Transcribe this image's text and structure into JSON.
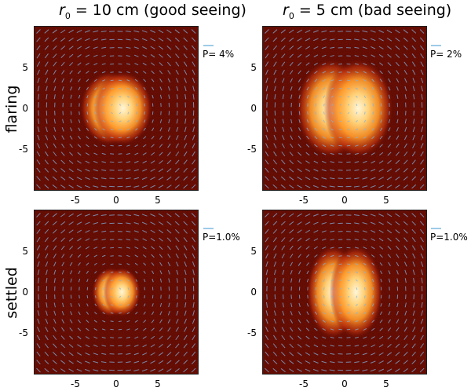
{
  "titles": {
    "left": {
      "prefix": "r",
      "sub": "0",
      "rest": " = 10 cm (good seeing)"
    },
    "right": {
      "prefix": "r",
      "sub": "0",
      "rest": " = 5 cm (bad seeing)"
    }
  },
  "rows": {
    "top": "flaring",
    "bottom": "settled"
  },
  "y_ticks": [
    "5",
    "0",
    "-5"
  ],
  "x_ticks": [
    "-5",
    "0",
    "5"
  ],
  "panels": [
    {
      "id": "flaring-good",
      "scale_label": "P= 4%",
      "blob": {
        "half_width": 5.5,
        "half_height": 3.0,
        "gap": 0.6
      }
    },
    {
      "id": "flaring-bad",
      "scale_label": "P= 2%",
      "blob": {
        "half_width": 6.5,
        "half_height": 4.0,
        "gap": 1.2
      }
    },
    {
      "id": "settled-good",
      "scale_label": "P=1.0%",
      "blob": {
        "half_width": 3.5,
        "half_height": 2.0,
        "gap": 0.5
      }
    },
    {
      "id": "settled-bad",
      "scale_label": "P=1.0%",
      "blob": {
        "half_width": 5.0,
        "half_height": 3.8,
        "gap": 1.0
      }
    }
  ],
  "colors": {
    "background": "#7a1005",
    "mid": "#c8380f",
    "hot": "#ff9a2a",
    "core": "#fff6d8",
    "vector": "#7fb3e0"
  }
}
